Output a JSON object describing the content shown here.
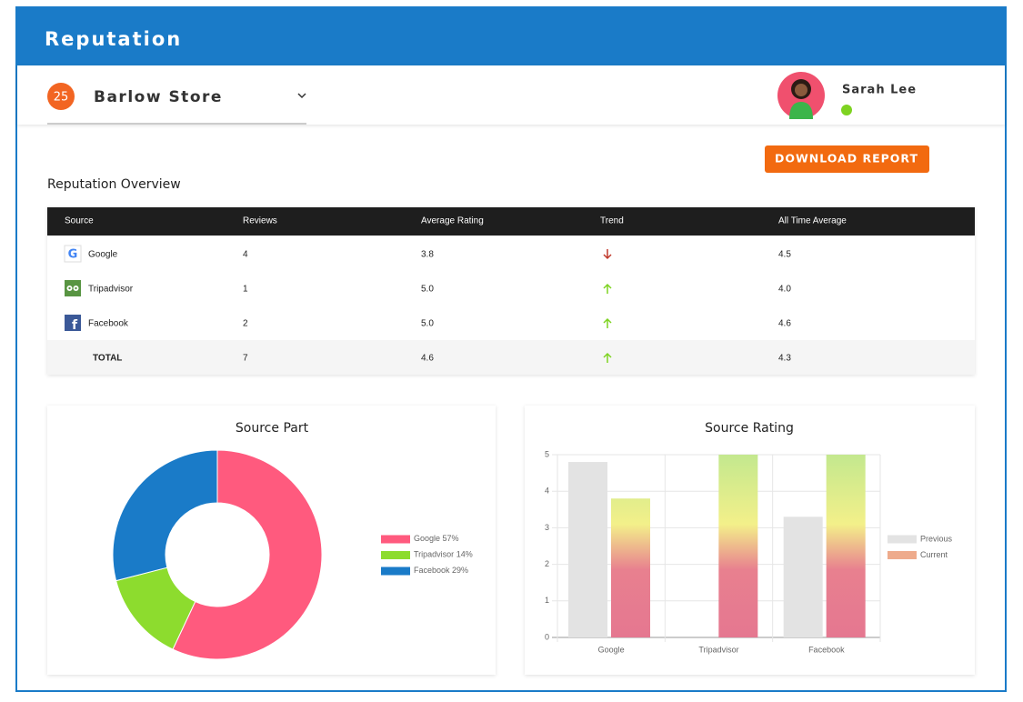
{
  "header": {
    "title": "Reputation"
  },
  "store": {
    "badge": "25",
    "name": "Barlow Store"
  },
  "user": {
    "name": "Sarah Lee"
  },
  "download_button": "DOWNLOAD REPORT",
  "overview": {
    "title": "Reputation Overview",
    "columns": [
      "Source",
      "Reviews",
      "Average Rating",
      "Trend",
      "All Time Average"
    ],
    "rows": [
      [
        "Google",
        "4",
        "3.8",
        "4.5"
      ],
      [
        "Tripadvisor",
        "1",
        "5.0",
        "4.0"
      ],
      [
        "Facebook",
        "2",
        "5.0",
        "4.6"
      ],
      [
        "TOTAL",
        "7",
        "4.6",
        "4.3"
      ]
    ],
    "trends": [
      "down",
      "up",
      "up",
      "up"
    ]
  },
  "chart_data": [
    {
      "type": "doughnut",
      "title": "Source Part",
      "categories": [
        "Google",
        "Tripadvisor",
        "Facebook"
      ],
      "values": [
        57,
        14,
        29
      ],
      "value_labels": [
        "57%",
        "14%",
        "29%"
      ],
      "colors": [
        "#ff5a7e",
        "#8ddc2e",
        "#1a7bc8"
      ]
    },
    {
      "type": "bar",
      "title": "Source Rating",
      "categories": [
        "Google",
        "Tripadvisor",
        "Facebook"
      ],
      "series": [
        {
          "name": "Previous",
          "color": "#e3e3e3",
          "values": [
            4.8,
            null,
            3.3
          ]
        },
        {
          "name": "Current",
          "color": "#eeab8c",
          "values": [
            3.8,
            5,
            5
          ]
        }
      ],
      "ylim": [
        0,
        5
      ],
      "yticks": [
        0,
        1,
        2,
        3,
        4,
        5
      ],
      "grid": true
    }
  ]
}
